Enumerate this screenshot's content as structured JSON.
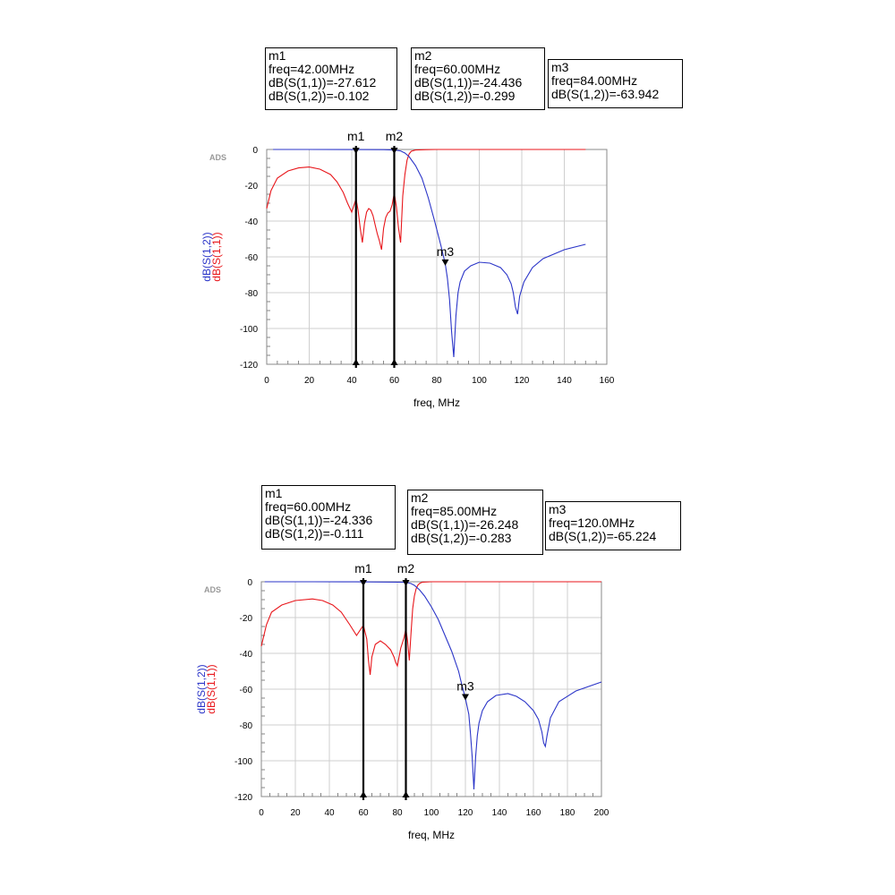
{
  "chart_data": [
    {
      "type": "line",
      "watermark": "ADS",
      "xlabel": "freq, MHz",
      "ylabels": [
        "dB(S(1,2))",
        "dB(S(1,1))"
      ],
      "xlim": [
        0,
        160
      ],
      "ylim": [
        -120,
        0
      ],
      "xticks": [
        0,
        20,
        40,
        60,
        80,
        100,
        120,
        140,
        160
      ],
      "yticks": [
        0,
        -20,
        -40,
        -60,
        -80,
        -100,
        -120
      ],
      "grid": true,
      "series": [
        {
          "label": "dB(S(1,1))",
          "color": "#e8161b",
          "x": [
            0,
            2,
            5,
            10,
            15,
            20,
            25,
            30,
            33,
            36,
            38,
            40,
            42,
            43,
            44,
            45,
            46,
            47,
            48,
            49,
            50,
            51,
            52,
            53,
            54,
            55,
            56,
            57,
            58,
            59,
            60,
            61,
            62,
            63,
            64,
            65,
            66,
            67,
            68,
            70,
            75,
            80,
            100,
            150
          ],
          "values": [
            -33,
            -23,
            -16,
            -12,
            -10.3,
            -9.8,
            -11,
            -14,
            -18,
            -24,
            -30,
            -35,
            -27.6,
            -34,
            -44,
            -52,
            -41,
            -35,
            -33,
            -34,
            -37,
            -42,
            -47,
            -51,
            -56,
            -44,
            -38,
            -35.5,
            -34.5,
            -31,
            -24.4,
            -32,
            -44,
            -52,
            -26,
            -14,
            -6,
            -2.5,
            -1,
            -0.3,
            -0.1,
            0,
            0,
            0
          ]
        },
        {
          "label": "dB(S(1,2))",
          "color": "#2b35c8",
          "x": [
            3,
            20,
            40,
            55,
            60,
            63,
            65,
            67,
            70,
            73,
            76,
            79,
            82,
            84,
            85,
            86,
            87,
            88,
            89,
            90,
            91,
            93,
            96,
            100,
            105,
            110,
            113,
            115,
            116,
            117,
            118,
            119,
            121,
            125,
            130,
            140,
            150
          ],
          "values": [
            0,
            0,
            -0.05,
            -0.1,
            -0.3,
            -0.8,
            -2,
            -4,
            -9,
            -16,
            -27,
            -40,
            -54,
            -63.9,
            -72,
            -84,
            -102,
            -116,
            -93,
            -80,
            -74,
            -68,
            -65,
            -63,
            -63.5,
            -66,
            -70,
            -75,
            -80,
            -88,
            -92,
            -82,
            -74,
            -66,
            -61,
            -56,
            -53
          ]
        }
      ],
      "markers": [
        {
          "name": "m1",
          "x": 42,
          "vertical": true
        },
        {
          "name": "m2",
          "x": 60,
          "vertical": true
        },
        {
          "name": "m3",
          "x": 84,
          "y": -63.942,
          "vertical": false
        }
      ]
    },
    {
      "type": "line",
      "watermark": "ADS",
      "xlabel": "freq, MHz",
      "ylabels": [
        "dB(S(1,2))",
        "dB(S(1,1))"
      ],
      "xlim": [
        0,
        200
      ],
      "ylim": [
        -120,
        0
      ],
      "xticks": [
        0,
        20,
        40,
        60,
        80,
        100,
        120,
        140,
        160,
        180,
        200
      ],
      "yticks": [
        0,
        -20,
        -40,
        -60,
        -80,
        -100,
        -120
      ],
      "grid": true,
      "series": [
        {
          "label": "dB(S(1,1))",
          "color": "#e8161b",
          "x": [
            0,
            3,
            6,
            12,
            20,
            30,
            36,
            42,
            47,
            52,
            56,
            60,
            62,
            63,
            64,
            65,
            67,
            70,
            73,
            76,
            78,
            79,
            80,
            81,
            82,
            84,
            85,
            86,
            87,
            88,
            89,
            90,
            91,
            92,
            93,
            94,
            95,
            100,
            120,
            200
          ],
          "values": [
            -36,
            -24,
            -17,
            -13,
            -10.5,
            -9.6,
            -10.5,
            -13,
            -17,
            -24,
            -30,
            -24.3,
            -32,
            -44,
            -52,
            -42,
            -35,
            -33,
            -35,
            -38,
            -42,
            -45,
            -47,
            -42,
            -37,
            -31,
            -26.2,
            -33,
            -44,
            -29,
            -15,
            -8,
            -4,
            -2,
            -1,
            -0.5,
            -0.2,
            0,
            0,
            0
          ]
        },
        {
          "label": "dB(S(1,2))",
          "color": "#2b35c8",
          "x": [
            2,
            30,
            55,
            80,
            85,
            88,
            90,
            93,
            96,
            100,
            104,
            108,
            112,
            116,
            118,
            120,
            122,
            123,
            124,
            125,
            126,
            127,
            128,
            130,
            133,
            138,
            145,
            150,
            155,
            160,
            163,
            165,
            166,
            167,
            168,
            170,
            175,
            185,
            200
          ],
          "values": [
            0,
            0,
            -0.05,
            -0.2,
            -0.3,
            -1,
            -2,
            -4.5,
            -8,
            -14,
            -21,
            -30,
            -39,
            -50,
            -58,
            -65.2,
            -74,
            -85,
            -98,
            -116,
            -98,
            -86,
            -79,
            -72,
            -67,
            -63.5,
            -62.5,
            -64,
            -67,
            -72,
            -77,
            -84,
            -90,
            -92,
            -86,
            -76,
            -67,
            -61,
            -56
          ]
        }
      ],
      "markers": [
        {
          "name": "m1",
          "x": 60,
          "vertical": true
        },
        {
          "name": "m2",
          "x": 85,
          "vertical": true
        },
        {
          "name": "m3",
          "x": 120,
          "y": -65.224,
          "vertical": false
        }
      ]
    }
  ],
  "marker_boxes": {
    "top": [
      {
        "lines": [
          "m1",
          "freq=42.00MHz",
          "dB(S(1,1))=-27.612",
          "dB(S(1,2))=-0.102"
        ]
      },
      {
        "lines": [
          "m2",
          "freq=60.00MHz",
          "dB(S(1,1))=-24.436",
          "dB(S(1,2))=-0.299"
        ]
      },
      {
        "lines": [
          "m3",
          "freq=84.00MHz",
          "dB(S(1,2))=-63.942"
        ]
      }
    ],
    "bottom": [
      {
        "lines": [
          "m1",
          "freq=60.00MHz",
          "dB(S(1,1))=-24.336",
          "dB(S(1,2))=-0.111"
        ]
      },
      {
        "lines": [
          "m2",
          "freq=85.00MHz",
          "dB(S(1,1))=-26.248",
          "dB(S(1,2))=-0.283"
        ]
      },
      {
        "lines": [
          "m3",
          "freq=120.0MHz",
          "dB(S(1,2))=-65.224"
        ]
      }
    ]
  }
}
